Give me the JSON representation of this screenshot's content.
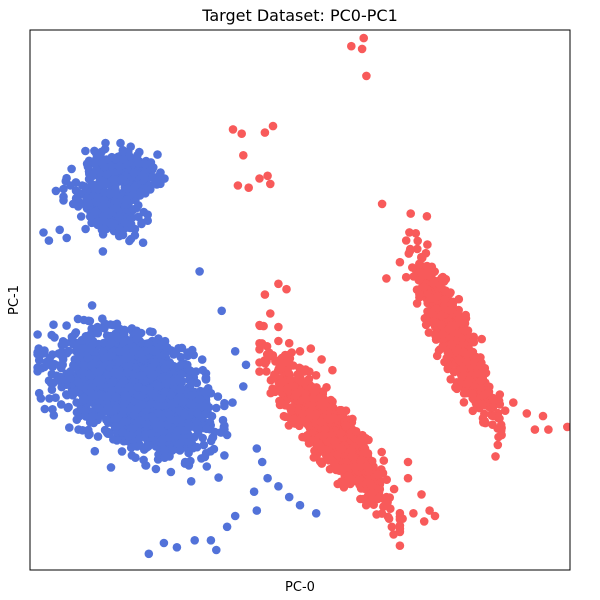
{
  "chart_data": {
    "type": "scatter",
    "title": "Target Dataset: PC0-PC1",
    "xlabel": "PC-0",
    "ylabel": "PC-1",
    "xlim": [
      0,
      100
    ],
    "ylim": [
      0,
      100
    ],
    "ticks_visible": false,
    "grid": false,
    "legend": "none",
    "colors": {
      "blue": "#5272d9",
      "red": "#f85a5a"
    },
    "series": [
      {
        "color_key": "blue",
        "clusters": [
          {
            "cx": 17,
            "cy": 34.5,
            "sx": 6.0,
            "sy": 4.2,
            "rho": -0.25,
            "n": 1400
          },
          {
            "cx": 23,
            "cy": 31,
            "sx": 5.0,
            "sy": 5.0,
            "rho": -0.35,
            "n": 900
          },
          {
            "cx": 14,
            "cy": 67.5,
            "sx": 3.0,
            "sy": 2.3,
            "rho": -0.4,
            "n": 320
          },
          {
            "cx": 17.5,
            "cy": 74,
            "sx": 3.0,
            "sy": 2.0,
            "rho": -0.3,
            "n": 180
          }
        ],
        "points": [
          [
            2.5,
            62.5
          ],
          [
            3.5,
            61
          ],
          [
            5.5,
            63
          ],
          [
            6.8,
            61.5
          ],
          [
            8,
            67.8
          ],
          [
            4.8,
            70.2
          ],
          [
            7.5,
            71.2
          ],
          [
            13.5,
            59
          ],
          [
            20.5,
            70
          ],
          [
            31.4,
            55.3
          ],
          [
            35.5,
            48
          ],
          [
            38,
            40.5
          ],
          [
            40,
            38
          ],
          [
            39.5,
            34
          ],
          [
            37.5,
            31
          ],
          [
            36.5,
            25
          ],
          [
            42,
            22.5
          ],
          [
            43,
            20
          ],
          [
            44,
            17
          ],
          [
            41.5,
            14.5
          ],
          [
            42,
            11
          ],
          [
            38,
            10
          ],
          [
            36.5,
            8
          ],
          [
            33.5,
            5.5
          ],
          [
            30.5,
            5.5
          ],
          [
            27.2,
            4.2
          ],
          [
            24.8,
            5
          ],
          [
            22,
            3
          ],
          [
            34.5,
            3.7
          ],
          [
            46,
            15.5
          ],
          [
            48,
            13.5
          ],
          [
            50,
            12
          ],
          [
            53,
            10.5
          ],
          [
            12.5,
            45
          ],
          [
            11.5,
            49
          ],
          [
            8.5,
            44
          ],
          [
            9.5,
            41
          ],
          [
            7.5,
            35.5
          ],
          [
            7,
            30
          ],
          [
            9,
            26
          ],
          [
            12,
            22
          ],
          [
            15,
            19
          ],
          [
            31,
            29
          ],
          [
            34.5,
            30
          ],
          [
            32,
            37
          ]
        ]
      },
      {
        "color_key": "red",
        "clusters": [
          {
            "cx": 55.5,
            "cy": 25.5,
            "sx": 5.0,
            "sy": 6.5,
            "rho": -0.88,
            "n": 900
          },
          {
            "cx": 78.5,
            "cy": 43,
            "sx": 3.4,
            "sy": 6.8,
            "rho": -0.87,
            "n": 700
          }
        ],
        "points": [
          [
            59.5,
            97
          ],
          [
            61.5,
            96.5
          ],
          [
            61.8,
            98.5
          ],
          [
            62.3,
            91.5
          ],
          [
            37.6,
            81.6
          ],
          [
            39.2,
            80.8
          ],
          [
            43.5,
            81
          ],
          [
            45,
            82.2
          ],
          [
            39.5,
            76.8
          ],
          [
            40.5,
            70.8
          ],
          [
            38.5,
            71.2
          ],
          [
            42.5,
            72.5
          ],
          [
            44,
            73
          ],
          [
            44.5,
            71.5
          ],
          [
            65.2,
            67.8
          ],
          [
            70.5,
            66
          ],
          [
            73.5,
            65.5
          ],
          [
            68.5,
            57
          ],
          [
            66,
            54
          ],
          [
            43.5,
            51
          ],
          [
            46,
            53
          ],
          [
            47.5,
            52
          ],
          [
            44.5,
            47.5
          ],
          [
            46,
            45
          ],
          [
            48,
            42
          ],
          [
            50,
            40.5
          ],
          [
            52,
            41
          ],
          [
            54,
            39
          ],
          [
            56,
            37
          ],
          [
            85,
            33
          ],
          [
            87,
            32.5
          ],
          [
            88,
            29.5
          ],
          [
            89.5,
            31
          ],
          [
            92,
            29
          ],
          [
            93.5,
            26
          ],
          [
            96,
            26
          ],
          [
            99.5,
            26.5
          ],
          [
            95,
            28.5
          ],
          [
            63,
            16
          ],
          [
            70,
            20
          ],
          [
            70,
            17
          ],
          [
            72.5,
            14
          ],
          [
            74,
            11
          ],
          [
            75,
            10
          ],
          [
            73,
            9
          ],
          [
            71,
            10.5
          ],
          [
            69,
            9.5
          ],
          [
            67,
            8
          ],
          [
            66.5,
            9.5
          ]
        ]
      }
    ]
  }
}
